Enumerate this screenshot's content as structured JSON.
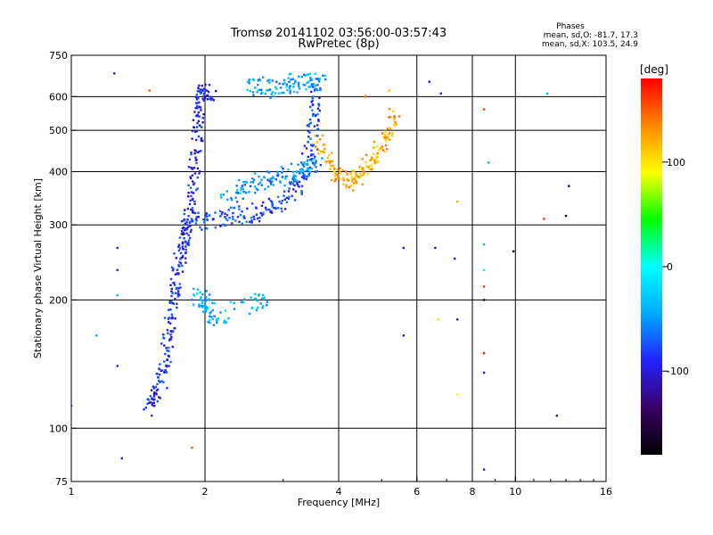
{
  "chart_data": {
    "type": "scatter",
    "title": "Tromsø 20141102 03:56:00-03:57:43",
    "subtitle": "RwPretec (8p)",
    "xlabel": "Frequency [MHz]",
    "ylabel": "Stationary phase Virtual Height [km]",
    "xscale": "log",
    "yscale": "log",
    "xlim": [
      1,
      16
    ],
    "ylim": [
      75,
      750
    ],
    "x_ticks": [
      1,
      2,
      4,
      6,
      8,
      10,
      16
    ],
    "x_tick_labels": [
      "1",
      "2",
      "4",
      "6",
      "8",
      "10",
      "16"
    ],
    "x_gridlines": [
      2,
      4,
      6,
      8,
      10
    ],
    "y_ticks": [
      75,
      100,
      200,
      300,
      400,
      500,
      600,
      750
    ],
    "y_tick_labels": [
      "75",
      "100",
      "200",
      "300",
      "400",
      "500",
      "600",
      "750"
    ],
    "y_gridlines": [
      100,
      200,
      300,
      400,
      500,
      600
    ],
    "grid": true,
    "colorbar": {
      "unit": "[deg]",
      "min": -180,
      "max": 180,
      "ticks": [
        100,
        0,
        -100
      ],
      "tick_labels": [
        "100",
        "0",
        "-100"
      ],
      "colors": [
        "#000000",
        "#3a0066",
        "#2222ff",
        "#00aaff",
        "#00ffff",
        "#00ff00",
        "#ffff00",
        "#ff8800",
        "#ff0000"
      ]
    },
    "stats": {
      "header": "Phases",
      "o_line": "mean, sd,O: -81.7, 17.3",
      "x_line": "mean, sd,X: 103.5, 24.9"
    },
    "traces": [
      {
        "name": "",
        "points": [
          [
            1.48,
            112
          ],
          [
            1.55,
            118
          ],
          [
            1.6,
            128
          ],
          [
            1.62,
            140
          ],
          [
            1.65,
            160
          ],
          [
            1.68,
            180
          ],
          [
            1.7,
            200
          ],
          [
            1.72,
            220
          ],
          [
            1.75,
            245
          ],
          [
            1.78,
            265
          ],
          [
            1.8,
            285
          ],
          [
            1.82,
            300
          ],
          [
            1.85,
            320
          ],
          [
            1.88,
            360
          ],
          [
            1.9,
            420
          ],
          [
            1.92,
            480
          ],
          [
            1.93,
            550
          ],
          [
            1.95,
            600
          ],
          [
            1.98,
            615
          ],
          [
            2.1,
            600
          ]
        ],
        "phase": -90
      },
      {
        "name": "",
        "points": [
          [
            1.9,
            305
          ],
          [
            2.0,
            305
          ],
          [
            2.2,
            310
          ],
          [
            2.4,
            315
          ],
          [
            2.6,
            320
          ],
          [
            2.8,
            330
          ],
          [
            3.0,
            345
          ],
          [
            3.2,
            365
          ],
          [
            3.35,
            395
          ],
          [
            3.45,
            440
          ],
          [
            3.5,
            490
          ],
          [
            3.55,
            560
          ],
          [
            3.6,
            640
          ]
        ],
        "phase": -80
      },
      {
        "name": "",
        "points": [
          [
            2.2,
            340
          ],
          [
            2.4,
            360
          ],
          [
            2.6,
            375
          ],
          [
            2.8,
            385
          ],
          [
            3.0,
            390
          ],
          [
            3.2,
            400
          ],
          [
            3.4,
            410
          ],
          [
            3.6,
            420
          ]
        ],
        "phase": -55
      },
      {
        "name": "",
        "points": [
          [
            3.6,
            480
          ],
          [
            3.8,
            430
          ],
          [
            4.0,
            390
          ],
          [
            4.2,
            380
          ],
          [
            4.4,
            390
          ],
          [
            4.6,
            410
          ],
          [
            4.8,
            430
          ],
          [
            5.0,
            460
          ],
          [
            5.2,
            500
          ],
          [
            5.4,
            550
          ]
        ],
        "phase": 120
      },
      {
        "name": "",
        "points": [
          [
            1.9,
            205
          ],
          [
            2.0,
            200
          ],
          [
            2.05,
            190
          ],
          [
            2.1,
            180
          ],
          [
            2.6,
            200
          ],
          [
            2.7,
            195
          ]
        ],
        "phase": -40
      },
      {
        "name": "",
        "points": [
          [
            2.5,
            630
          ],
          [
            2.7,
            640
          ],
          [
            2.9,
            625
          ],
          [
            3.1,
            650
          ],
          [
            3.3,
            640
          ],
          [
            3.5,
            650
          ],
          [
            3.7,
            640
          ]
        ],
        "phase": -45
      }
    ],
    "isolated_points": [
      {
        "x": 1.25,
        "y": 680,
        "phase": -100
      },
      {
        "x": 1.5,
        "y": 620,
        "phase": 150
      },
      {
        "x": 1.27,
        "y": 265,
        "phase": -100
      },
      {
        "x": 1.27,
        "y": 235,
        "phase": -100
      },
      {
        "x": 1.27,
        "y": 205,
        "phase": -40
      },
      {
        "x": 1.27,
        "y": 140,
        "phase": -100
      },
      {
        "x": 1.3,
        "y": 85,
        "phase": -100
      },
      {
        "x": 1.14,
        "y": 165,
        "phase": -40
      },
      {
        "x": 1.0,
        "y": 113,
        "phase": -100
      },
      {
        "x": 1.87,
        "y": 90,
        "phase": 150
      },
      {
        "x": 4.6,
        "y": 600,
        "phase": 140
      },
      {
        "x": 5.2,
        "y": 620,
        "phase": 120
      },
      {
        "x": 6.4,
        "y": 650,
        "phase": -110
      },
      {
        "x": 6.8,
        "y": 610,
        "phase": -90
      },
      {
        "x": 5.6,
        "y": 265,
        "phase": -100
      },
      {
        "x": 6.6,
        "y": 265,
        "phase": -100
      },
      {
        "x": 5.6,
        "y": 165,
        "phase": -100
      },
      {
        "x": 7.3,
        "y": 250,
        "phase": -100
      },
      {
        "x": 7.4,
        "y": 180,
        "phase": -100
      },
      {
        "x": 7.4,
        "y": 120,
        "phase": 90
      },
      {
        "x": 7.4,
        "y": 340,
        "phase": 120
      },
      {
        "x": 8.5,
        "y": 560,
        "phase": 160
      },
      {
        "x": 8.5,
        "y": 270,
        "phase": -40
      },
      {
        "x": 8.5,
        "y": 235,
        "phase": 10
      },
      {
        "x": 8.5,
        "y": 215,
        "phase": 160
      },
      {
        "x": 8.5,
        "y": 200,
        "phase": -150
      },
      {
        "x": 8.5,
        "y": 150,
        "phase": 170
      },
      {
        "x": 8.5,
        "y": 135,
        "phase": -100
      },
      {
        "x": 8.5,
        "y": 80,
        "phase": -100
      },
      {
        "x": 8.7,
        "y": 420,
        "phase": -40
      },
      {
        "x": 9.9,
        "y": 260,
        "phase": -150
      },
      {
        "x": 11.6,
        "y": 310,
        "phase": 160
      },
      {
        "x": 12.4,
        "y": 107,
        "phase": -110
      },
      {
        "x": 13.0,
        "y": 315,
        "phase": -150
      },
      {
        "x": 13.2,
        "y": 370,
        "phase": -150
      },
      {
        "x": 11.8,
        "y": 610,
        "phase": -40
      },
      {
        "x": 6.7,
        "y": 180,
        "phase": 100
      }
    ]
  }
}
